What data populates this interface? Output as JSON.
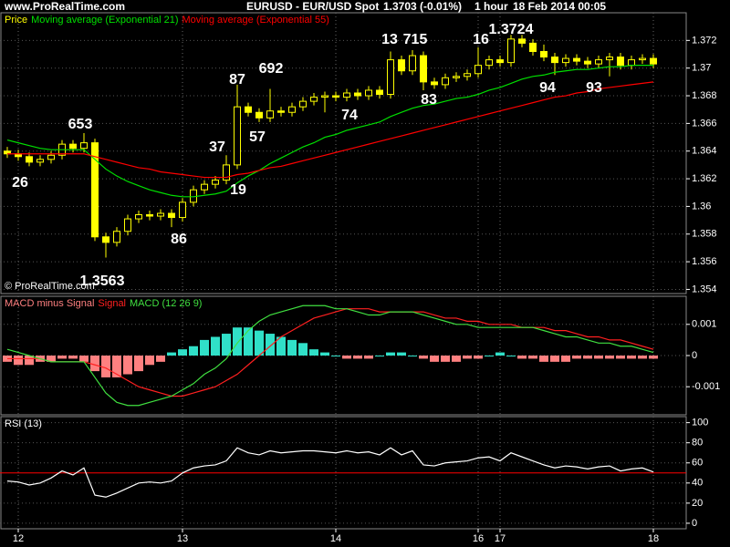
{
  "header": {
    "site": "www.ProRealTime.com",
    "instrument": "EURUSD - EUR/USD Spot",
    "last": "1.3703 (-0.01%)",
    "timeframe": "1 hour",
    "date": "18 Feb 2014 00:05"
  },
  "chart_data": [
    {
      "type": "candlestick",
      "categories": [
        null,
        "12",
        null,
        null,
        null,
        null,
        null,
        null,
        null,
        null,
        null,
        null,
        null,
        null,
        null,
        null,
        "13",
        null,
        null,
        null,
        null,
        null,
        null,
        null,
        null,
        null,
        null,
        null,
        null,
        null,
        "14",
        null,
        null,
        null,
        null,
        null,
        null,
        null,
        null,
        null,
        null,
        null,
        null,
        "16",
        null,
        "17",
        null,
        null,
        null,
        null,
        null,
        null,
        null,
        null,
        null,
        null,
        null,
        null,
        null,
        "18"
      ],
      "series": [
        {
          "name": "Price",
          "color": "#ffff00",
          "open": [
            1.364,
            1.3638,
            1.3636,
            1.3632,
            1.3634,
            1.3637,
            1.3645,
            1.3642,
            1.3646,
            1.3578,
            1.3574,
            1.3582,
            1.3591,
            1.3594,
            1.3593,
            1.3595,
            1.3592,
            1.3603,
            1.3612,
            1.3616,
            1.3619,
            1.363,
            1.3672,
            1.3668,
            1.3664,
            1.3669,
            1.3668,
            1.3672,
            1.3676,
            1.3679,
            1.368,
            1.3679,
            1.3682,
            1.368,
            1.3684,
            1.3681,
            1.3706,
            1.3698,
            1.3709,
            1.369,
            1.3688,
            1.3693,
            1.3694,
            1.3696,
            1.3702,
            1.3706,
            1.3704,
            1.3721,
            1.3718,
            1.3712,
            1.3708,
            1.3704,
            1.3707,
            1.3705,
            1.3703,
            1.3706,
            1.3708,
            1.3702,
            1.3706,
            1.3707
          ],
          "high": [
            1.3643,
            1.3641,
            1.3639,
            1.3637,
            1.364,
            1.3648,
            1.3648,
            1.3653,
            1.3649,
            1.3581,
            1.3585,
            1.3594,
            1.3597,
            1.3597,
            1.3598,
            1.3598,
            1.3606,
            1.3615,
            1.3619,
            1.3622,
            1.3637,
            1.3688,
            1.3675,
            1.3671,
            1.3685,
            1.3672,
            1.3675,
            1.3679,
            1.3682,
            1.3683,
            1.3683,
            1.3685,
            1.3685,
            1.3687,
            1.3687,
            1.3712,
            1.3709,
            1.3713,
            1.3712,
            1.3693,
            1.3696,
            1.3697,
            1.3699,
            1.3715,
            1.3709,
            1.3709,
            1.3724,
            1.3724,
            1.3721,
            1.3717,
            1.3711,
            1.371,
            1.371,
            1.3708,
            1.3709,
            1.3711,
            1.3711,
            1.3709,
            1.371,
            1.371
          ],
          "low": [
            1.3635,
            1.3633,
            1.3629,
            1.3629,
            1.3631,
            1.3634,
            1.3639,
            1.3639,
            1.3575,
            1.3563,
            1.3571,
            1.3579,
            1.3588,
            1.359,
            1.359,
            1.3585,
            1.3589,
            1.36,
            1.3609,
            1.3613,
            1.3616,
            1.3627,
            1.3665,
            1.3661,
            1.3661,
            1.3665,
            1.3665,
            1.3669,
            1.3673,
            1.3668,
            1.3676,
            1.3676,
            1.3677,
            1.3677,
            1.3678,
            1.3678,
            1.3695,
            1.3695,
            1.3684,
            1.3685,
            1.3685,
            1.369,
            1.3691,
            1.3693,
            1.3699,
            1.3701,
            1.3701,
            1.3715,
            1.3709,
            1.3705,
            1.3695,
            1.3701,
            1.3702,
            1.37,
            1.37,
            1.3694,
            1.3699,
            1.3699,
            1.3703,
            1.37
          ],
          "close": [
            1.3638,
            1.3636,
            1.3632,
            1.3634,
            1.3637,
            1.3645,
            1.3642,
            1.3646,
            1.3578,
            1.3574,
            1.3582,
            1.3591,
            1.3594,
            1.3593,
            1.3595,
            1.3592,
            1.3603,
            1.3612,
            1.3616,
            1.3619,
            1.363,
            1.3672,
            1.3668,
            1.3664,
            1.3669,
            1.3668,
            1.3672,
            1.3676,
            1.3679,
            1.368,
            1.3679,
            1.3682,
            1.368,
            1.3684,
            1.3681,
            1.3706,
            1.3698,
            1.3709,
            1.369,
            1.3688,
            1.3693,
            1.3694,
            1.3696,
            1.3702,
            1.3706,
            1.3704,
            1.3721,
            1.3718,
            1.3712,
            1.3708,
            1.3704,
            1.3707,
            1.3705,
            1.3703,
            1.3706,
            1.3708,
            1.3702,
            1.3706,
            1.3707,
            1.3703
          ]
        },
        {
          "name": "Moving average (Exponential 21)",
          "color": "#00e000",
          "values": [
            1.3648,
            1.3646,
            1.3644,
            1.3642,
            1.3641,
            1.3641,
            1.3641,
            1.3641,
            1.3634,
            1.3627,
            1.3622,
            1.3618,
            1.3615,
            1.3612,
            1.361,
            1.3608,
            1.3607,
            1.3607,
            1.3608,
            1.3609,
            1.3611,
            1.3617,
            1.3622,
            1.3626,
            1.3631,
            1.3635,
            1.3639,
            1.3643,
            1.3646,
            1.365,
            1.3652,
            1.3655,
            1.3657,
            1.3659,
            1.3661,
            1.3665,
            1.3668,
            1.3671,
            1.3673,
            1.3674,
            1.3676,
            1.3678,
            1.3679,
            1.3681,
            1.3684,
            1.3686,
            1.3689,
            1.3692,
            1.3694,
            1.3695,
            1.3697,
            1.3698,
            1.3699,
            1.3699,
            1.37,
            1.3701,
            1.3701,
            1.3702,
            1.3702,
            1.3702
          ]
        },
        {
          "name": "Moving average (Exponential 55)",
          "color": "#ff0000",
          "values": [
            1.3638,
            1.3638,
            1.3638,
            1.3638,
            1.3638,
            1.3638,
            1.3638,
            1.3638,
            1.3636,
            1.3634,
            1.3632,
            1.363,
            1.3628,
            1.3627,
            1.3625,
            1.3624,
            1.3623,
            1.3622,
            1.3621,
            1.3621,
            1.3621,
            1.3623,
            1.3624,
            1.3626,
            1.3628,
            1.3629,
            1.3631,
            1.3633,
            1.3635,
            1.3637,
            1.3639,
            1.3641,
            1.3643,
            1.3645,
            1.3647,
            1.3649,
            1.3651,
            1.3653,
            1.3655,
            1.3657,
            1.3659,
            1.3661,
            1.3663,
            1.3665,
            1.3667,
            1.3669,
            1.3671,
            1.3673,
            1.3675,
            1.3677,
            1.3679,
            1.368,
            1.3682,
            1.3683,
            1.3685,
            1.3686,
            1.3687,
            1.3688,
            1.3689,
            1.369
          ]
        }
      ],
      "ylim": [
        1.3537,
        1.374
      ],
      "yticks": [
        1.354,
        1.356,
        1.358,
        1.36,
        1.362,
        1.364,
        1.366,
        1.368,
        1.37,
        1.372
      ],
      "grid": true,
      "annotations": [
        "26",
        "653",
        "1.3563",
        "86",
        "37",
        "87",
        "57",
        "692",
        "19",
        "74",
        "13",
        "715",
        "83",
        "16",
        "1.3724",
        "94",
        "93"
      ],
      "watermark": "© ProRealTime.com"
    },
    {
      "type": "macd",
      "series": [
        {
          "name": "MACD minus Signal",
          "color": "#ff8080",
          "positive_color": "#30e0c8",
          "values": [
            -0.0002,
            -0.0003,
            -0.0003,
            -0.0002,
            -0.0002,
            -0.0001,
            -0.0001,
            -0.0002,
            -0.0005,
            -0.0007,
            -0.0007,
            -0.0006,
            -0.0005,
            -0.0003,
            -0.0002,
            0.0001,
            0.0002,
            0.0003,
            0.0005,
            0.0006,
            0.0007,
            0.0009,
            0.0009,
            0.0008,
            0.0007,
            0.0006,
            0.0005,
            0.0004,
            0.0002,
            0.0001,
            0,
            -0.0001,
            -0.0001,
            -0.0001,
            0,
            0.0001,
            0.0001,
            0,
            -0.0001,
            -0.0002,
            -0.0002,
            -0.0002,
            -0.0001,
            -0.0001,
            0,
            0.0001,
            0,
            -0.0001,
            -0.0001,
            -0.0002,
            -0.0002,
            -0.0002,
            -0.0001,
            -0.0001,
            -0.0001,
            -0.0001,
            -0.0001,
            -0.0001,
            -0.0001,
            -0.0001
          ]
        },
        {
          "name": "Signal",
          "color": "#ff2020",
          "values": [
            -0.0001,
            -0.0001,
            -0.0001,
            -0.0001,
            -0.0002,
            -0.0002,
            -0.0002,
            -0.0002,
            -0.0003,
            -0.0004,
            -0.0006,
            -0.0008,
            -0.001,
            -0.0011,
            -0.0012,
            -0.0013,
            -0.0013,
            -0.0012,
            -0.0011,
            -0.001,
            -0.0008,
            -0.0006,
            -0.0003,
            0,
            0.0003,
            0.0006,
            0.0008,
            0.001,
            0.0012,
            0.0013,
            0.0014,
            0.0015,
            0.0015,
            0.0015,
            0.0014,
            0.0014,
            0.0014,
            0.0014,
            0.0014,
            0.0013,
            0.0012,
            0.0012,
            0.0011,
            0.0011,
            0.001,
            0.001,
            0.001,
            0.0009,
            0.0009,
            0.0009,
            0.0008,
            0.0008,
            0.0007,
            0.0006,
            0.0006,
            0.0005,
            0.0005,
            0.0004,
            0.0003,
            0.0002
          ]
        },
        {
          "name": "MACD (12 26 9)",
          "color": "#40e040",
          "values": [
            0.0002,
            0.0001,
            0,
            -0.0001,
            -0.0002,
            -0.0002,
            -0.0002,
            -0.0002,
            -0.0007,
            -0.0012,
            -0.0015,
            -0.0016,
            -0.0016,
            -0.0015,
            -0.0014,
            -0.0013,
            -0.0011,
            -0.0009,
            -0.0006,
            -0.0004,
            -0.0001,
            0.0004,
            0.0008,
            0.0011,
            0.0013,
            0.0014,
            0.0015,
            0.0016,
            0.0016,
            0.0016,
            0.0015,
            0.0015,
            0.0014,
            0.0013,
            0.0013,
            0.0014,
            0.0014,
            0.0014,
            0.0013,
            0.0012,
            0.0011,
            0.001,
            0.001,
            0.0009,
            0.0009,
            0.0009,
            0.0009,
            0.0009,
            0.0009,
            0.0008,
            0.0007,
            0.0006,
            0.0006,
            0.0005,
            0.0004,
            0.0004,
            0.0003,
            0.0003,
            0.0002,
            0.0001
          ]
        }
      ],
      "ylim": [
        -0.0019,
        0.0019
      ],
      "yticks": [
        -0.001,
        0,
        0.001
      ],
      "grid": true
    },
    {
      "type": "line",
      "series": [
        {
          "name": "RSI (13)",
          "color": "#ffffff",
          "values": [
            42,
            41,
            38,
            40,
            45,
            52,
            48,
            55,
            28,
            26,
            30,
            35,
            40,
            41,
            40,
            42,
            50,
            55,
            57,
            58,
            62,
            75,
            70,
            68,
            72,
            70,
            71,
            72,
            72,
            71,
            70,
            72,
            70,
            71,
            68,
            75,
            68,
            72,
            58,
            57,
            60,
            61,
            62,
            65,
            66,
            62,
            70,
            66,
            62,
            58,
            55,
            57,
            56,
            54,
            56,
            57,
            52,
            54,
            55,
            51
          ]
        }
      ],
      "hline": {
        "value": 50,
        "color": "#ff0000"
      },
      "ylim": [
        -5.5,
        106
      ],
      "yticks": [
        0,
        20,
        40,
        60,
        80,
        100
      ],
      "grid": true
    }
  ]
}
